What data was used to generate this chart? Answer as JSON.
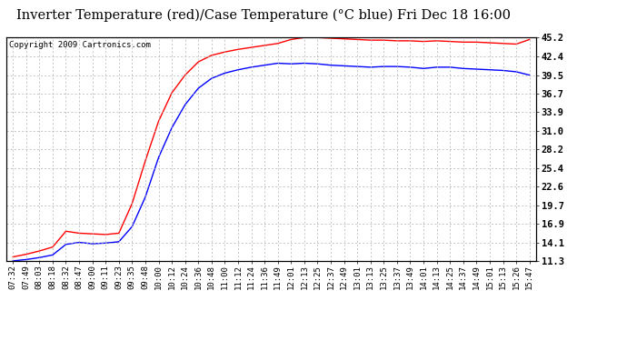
{
  "title": "Inverter Temperature (red)/Case Temperature (°C blue) Fri Dec 18 16:00",
  "copyright": "Copyright 2009 Cartronics.com",
  "yticks": [
    11.3,
    14.1,
    16.9,
    19.7,
    22.6,
    25.4,
    28.2,
    31.0,
    33.9,
    36.7,
    39.5,
    42.4,
    45.2
  ],
  "ylim": [
    11.3,
    45.2
  ],
  "xtick_labels": [
    "07:32",
    "07:49",
    "08:03",
    "08:18",
    "08:32",
    "08:47",
    "09:00",
    "09:11",
    "09:23",
    "09:35",
    "09:48",
    "10:00",
    "10:12",
    "10:24",
    "10:36",
    "10:48",
    "11:00",
    "11:12",
    "11:24",
    "11:36",
    "11:49",
    "12:01",
    "12:13",
    "12:25",
    "12:37",
    "12:49",
    "13:01",
    "13:13",
    "13:25",
    "13:37",
    "13:49",
    "14:01",
    "14:13",
    "14:25",
    "14:37",
    "14:49",
    "15:01",
    "15:13",
    "15:26",
    "15:47"
  ],
  "red_y": [
    11.9,
    12.3,
    12.8,
    13.4,
    15.8,
    15.5,
    15.4,
    15.3,
    15.5,
    20.0,
    26.5,
    32.5,
    36.8,
    39.5,
    41.5,
    42.5,
    43.0,
    43.4,
    43.7,
    44.0,
    44.3,
    44.9,
    45.2,
    45.2,
    45.1,
    45.0,
    44.9,
    44.8,
    44.8,
    44.7,
    44.7,
    44.6,
    44.7,
    44.6,
    44.5,
    44.5,
    44.4,
    44.3,
    44.2,
    44.9
  ],
  "blue_y": [
    11.3,
    11.5,
    11.8,
    12.2,
    13.8,
    14.1,
    13.9,
    14.0,
    14.2,
    16.5,
    21.0,
    27.0,
    31.5,
    35.0,
    37.5,
    39.0,
    39.8,
    40.3,
    40.7,
    41.0,
    41.3,
    41.2,
    41.3,
    41.2,
    41.0,
    40.9,
    40.8,
    40.7,
    40.8,
    40.8,
    40.7,
    40.5,
    40.7,
    40.7,
    40.5,
    40.4,
    40.3,
    40.2,
    40.0,
    39.5
  ],
  "line_color_red": "#ff0000",
  "line_color_blue": "#0000ff",
  "background_color": "#ffffff",
  "plot_bg_color": "#ffffff",
  "grid_color": "#b0b0b0",
  "title_fontsize": 10.5,
  "tick_fontsize": 6.5,
  "copyright_fontsize": 6.5
}
